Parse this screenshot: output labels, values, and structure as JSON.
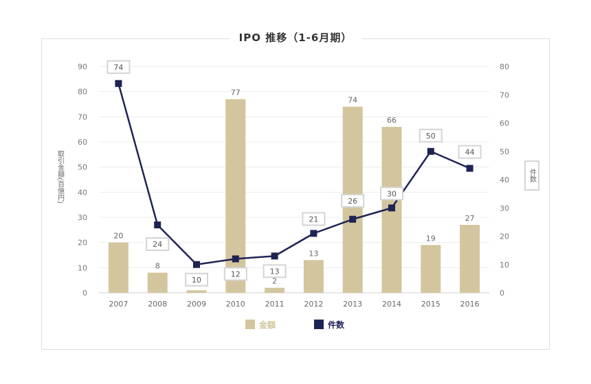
{
  "chart_data": {
    "type": "bar",
    "title": "IPO 推移（1-6月期）",
    "categories": [
      "2007",
      "2008",
      "2009",
      "2010",
      "2011",
      "2012",
      "2013",
      "2014",
      "2015",
      "2016"
    ],
    "series": [
      {
        "name": "金額",
        "type": "bar",
        "axis": "left",
        "color": "#d3c59d",
        "values": [
          20,
          8,
          1,
          77,
          2,
          13,
          74,
          66,
          19,
          27
        ]
      },
      {
        "name": "件数",
        "type": "line",
        "axis": "right",
        "color": "#1f2353",
        "values": [
          74,
          24,
          10,
          12,
          13,
          21,
          26,
          30,
          50,
          44
        ]
      }
    ],
    "ylabel": "取引金額(百億円)",
    "y2label": "件数",
    "ylim": [
      0,
      90
    ],
    "yticks": [
      0,
      10,
      20,
      30,
      40,
      50,
      60,
      70,
      80,
      90
    ],
    "y2lim": [
      0,
      80
    ],
    "y2ticks": [
      0,
      10,
      20,
      30,
      40,
      50,
      60,
      70,
      80
    ],
    "grid": true,
    "legend_position": "bottom"
  }
}
